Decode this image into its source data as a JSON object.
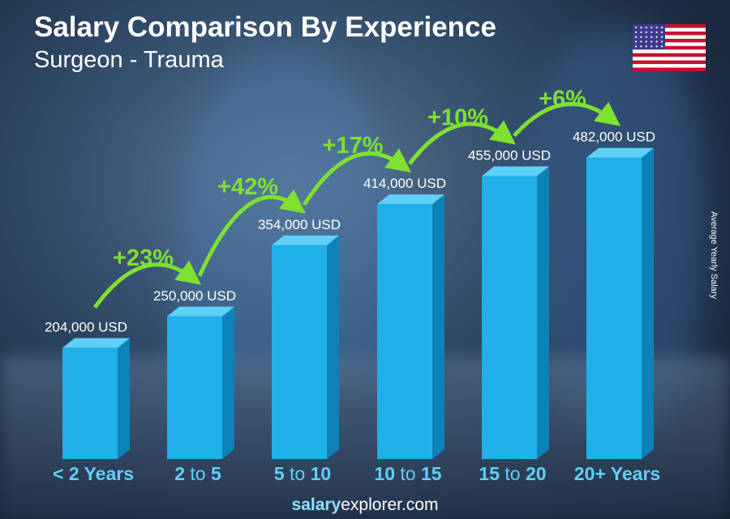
{
  "header": {
    "title": "Salary Comparison By Experience",
    "subtitle": "Surgeon - Trauma"
  },
  "y_axis_label": "Average Yearly Salary",
  "footer": {
    "brand_bold": "salary",
    "brand_rest": "explorer",
    "brand_tld": ".com"
  },
  "colors": {
    "bar": "#1fb0ea",
    "bar_side": "#0d82b8",
    "bar_top": "#5fd0f8",
    "growth": "#7fe030",
    "category": "#5fd0f8"
  },
  "chart_data": {
    "type": "bar",
    "categories": [
      "< 2 Years",
      "2 to 5",
      "5 to 10",
      "10 to 15",
      "15 to 20",
      "20+ Years"
    ],
    "category_parts": [
      [
        "< 2 Years",
        "",
        ""
      ],
      [
        "2",
        " to ",
        "5"
      ],
      [
        "5",
        " to ",
        "10"
      ],
      [
        "10",
        " to ",
        "15"
      ],
      [
        "15",
        " to ",
        "20"
      ],
      [
        "20+ Years",
        "",
        ""
      ]
    ],
    "values": [
      204000,
      250000,
      354000,
      414000,
      455000,
      482000
    ],
    "value_labels": [
      "204,000 USD",
      "250,000 USD",
      "354,000 USD",
      "414,000 USD",
      "455,000 USD",
      "482,000 USD"
    ],
    "growth_labels": [
      "+23%",
      "+42%",
      "+17%",
      "+10%",
      "+6%"
    ],
    "ylabel": "Average Yearly Salary",
    "grid": false,
    "unit": "USD"
  }
}
